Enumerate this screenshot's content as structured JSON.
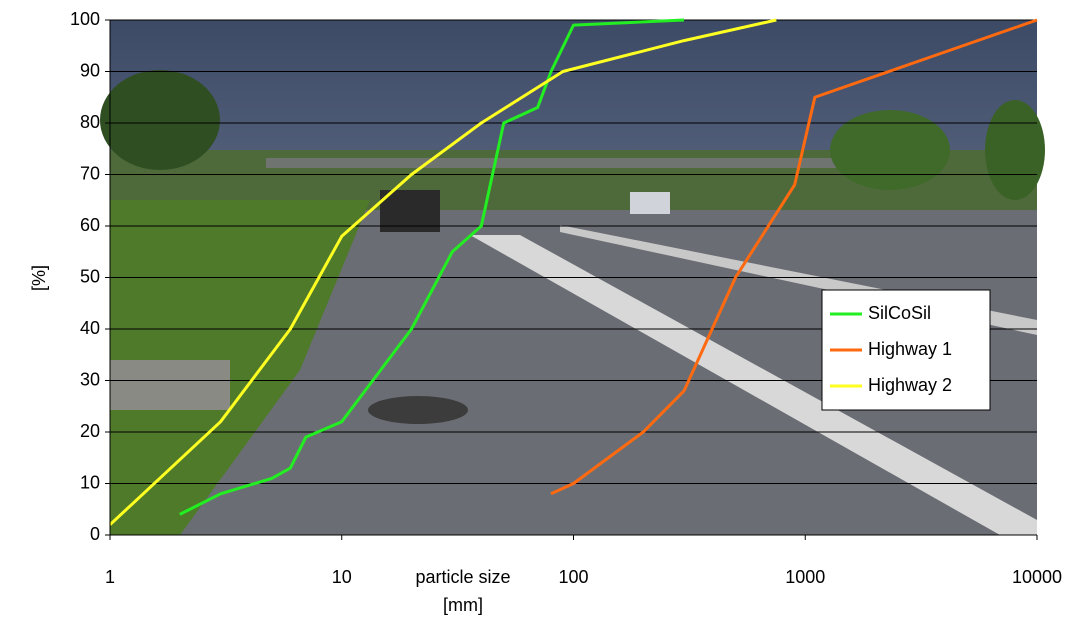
{
  "chart_data": {
    "type": "line",
    "x_label": "particle size",
    "x_unit": "[mm]",
    "y_label": "[%]",
    "x_log": true,
    "xlim": [
      1,
      10000
    ],
    "xticks": [
      1,
      10,
      100,
      1000,
      10000
    ],
    "ylim": [
      0,
      100
    ],
    "yticks": [
      0,
      10,
      20,
      30,
      40,
      50,
      60,
      70,
      80,
      90,
      100
    ],
    "grid": true,
    "legend": "right",
    "series": [
      {
        "name": "SilCoSil",
        "color": "#22ee22",
        "x": [
          2,
          3,
          5,
          6,
          7,
          10,
          20,
          30,
          40,
          50,
          70,
          80,
          100,
          300
        ],
        "values": [
          4,
          8,
          11,
          13,
          19,
          22,
          40,
          55,
          60,
          80,
          83,
          90,
          99,
          100
        ]
      },
      {
        "name": "Highway 1",
        "color": "#ff6a10",
        "x": [
          80,
          100,
          200,
          300,
          500,
          900,
          1100,
          10000
        ],
        "values": [
          8,
          10,
          20,
          28,
          50,
          68,
          85,
          100
        ]
      },
      {
        "name": "Highway 2",
        "color": "#ffff22",
        "x": [
          1,
          3,
          6,
          10,
          20,
          40,
          90,
          300,
          750
        ],
        "values": [
          2,
          22,
          40,
          58,
          70,
          80,
          90,
          96,
          100
        ]
      }
    ]
  }
}
